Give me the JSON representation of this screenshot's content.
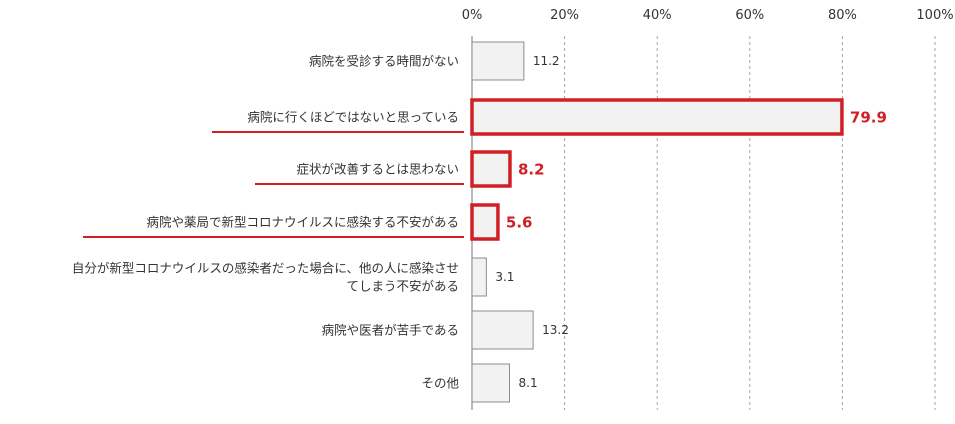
{
  "chart_data": {
    "type": "bar",
    "orientation": "horizontal",
    "categories": [
      "病院を受診する時間がない",
      "病院に行くほどではないと思っている",
      "症状が改善するとは思わない",
      "病院や薬局で新型コロナウイルスに感染する不安がある",
      "自分が新型コロナウイルスの感染者だった場合に、他の人に感染させてしまう不安がある",
      "病院や医者が苦手である",
      "その他"
    ],
    "category_lines": [
      [
        "病院を受診する時間がない"
      ],
      [
        "病院に行くほどではないと思っている"
      ],
      [
        "症状が改善するとは思わない"
      ],
      [
        "病院や薬局で新型コロナウイルスに感染する不安がある"
      ],
      [
        "自分が新型コロナウイルスの感染者だった場合に、他の人に感染させ",
        "てしまう不安がある"
      ],
      [
        "病院や医者が苦手である"
      ],
      [
        "その他"
      ]
    ],
    "values": [
      11.2,
      79.9,
      8.2,
      5.6,
      3.1,
      13.2,
      8.1
    ],
    "value_labels": [
      "11.2",
      "79.9",
      "8.2",
      "5.6",
      "3.1",
      "13.2",
      "8.1"
    ],
    "highlighted": [
      false,
      true,
      true,
      true,
      false,
      false,
      false
    ],
    "xlim": [
      0,
      100
    ],
    "xticks": [
      "0%",
      "20%",
      "40%",
      "60%",
      "80%",
      "100%"
    ],
    "title": "",
    "xlabel": "",
    "ylabel": "",
    "grid": "vertical dashed",
    "colors": {
      "bar_fill": "#f2f2f2",
      "bar_stroke": "#8c8c8c",
      "highlight": "#d11f26",
      "grid": "#a6a6a6",
      "text": "#333333"
    }
  }
}
